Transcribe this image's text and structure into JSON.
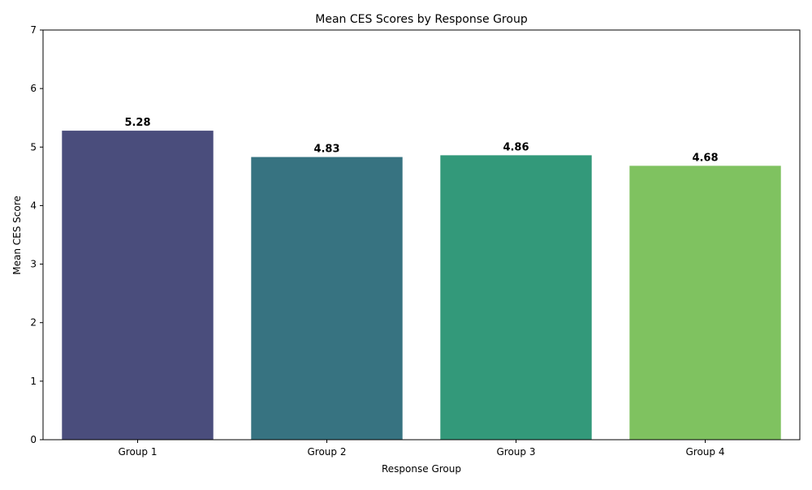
{
  "chart_data": {
    "type": "bar",
    "title": "Mean CES Scores by Response Group",
    "xlabel": "Response Group",
    "ylabel": "Mean CES Score",
    "categories": [
      "Group 1",
      "Group 2",
      "Group 3",
      "Group 4"
    ],
    "values": [
      5.28,
      4.83,
      4.86,
      4.68
    ],
    "data_labels": [
      "5.28",
      "4.83",
      "4.86",
      "4.68"
    ],
    "colors": [
      "#4a4d7c",
      "#377381",
      "#33997a",
      "#7fc260"
    ],
    "ylim": [
      0,
      7
    ],
    "yticks": [
      0,
      1,
      2,
      3,
      4,
      5,
      6,
      7
    ],
    "ytick_labels": [
      "0",
      "1",
      "2",
      "3",
      "4",
      "5",
      "6",
      "7"
    ],
    "grid": false,
    "legend": "none"
  }
}
